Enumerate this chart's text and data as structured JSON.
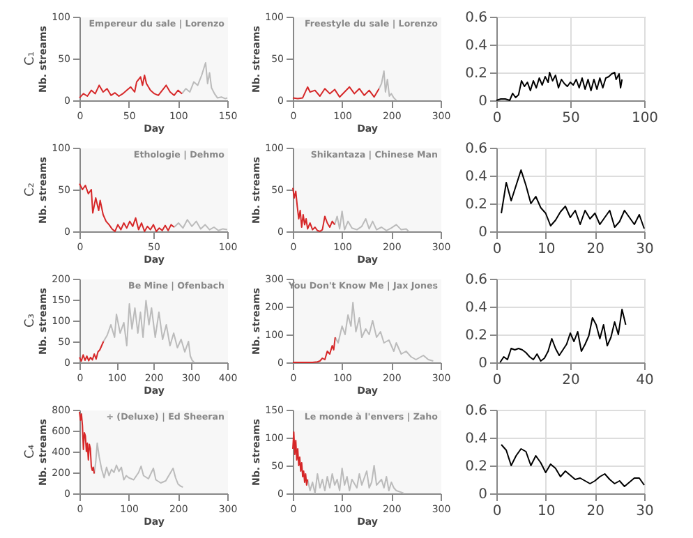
{
  "chart_data": [
    {
      "type": "line",
      "title": "Empereur du sale | Lorenzo",
      "xlabel": "Day",
      "ylabel": "Nb. streams",
      "annotations": [
        "C₁"
      ],
      "xlim": [
        0,
        150
      ],
      "xticks": [
        0,
        50,
        100,
        150
      ],
      "ylim": [
        0,
        100
      ],
      "yticks": [
        0,
        50,
        100
      ],
      "grid": false,
      "series": [
        {
          "color": "#bbbbbb",
          "x": [
            104,
            108,
            112,
            116,
            120,
            124,
            128,
            130,
            132,
            134,
            137,
            140,
            144,
            148,
            150
          ],
          "values": [
            8,
            14,
            10,
            22,
            18,
            30,
            45,
            20,
            33,
            15,
            8,
            3,
            4,
            2,
            3
          ]
        },
        {
          "color": "#d62728",
          "x": [
            0,
            4,
            8,
            12,
            16,
            20,
            24,
            28,
            32,
            36,
            40,
            44,
            48,
            52,
            56,
            58,
            62,
            64,
            66,
            68,
            72,
            76,
            80,
            84,
            88,
            92,
            96,
            100,
            104
          ],
          "values": [
            3,
            8,
            5,
            12,
            8,
            18,
            10,
            14,
            6,
            9,
            5,
            8,
            12,
            16,
            10,
            22,
            28,
            18,
            30,
            20,
            12,
            8,
            6,
            12,
            18,
            10,
            6,
            12,
            8
          ]
        }
      ]
    },
    {
      "type": "line",
      "title": "Freestyle du sale | Lorenzo",
      "xlabel": "Day",
      "ylabel": "Nb. streams",
      "xlim": [
        0,
        300
      ],
      "xticks": [
        0,
        100,
        200,
        300
      ],
      "ylim": [
        0,
        100
      ],
      "yticks": [
        0,
        50,
        100
      ],
      "grid": false,
      "series": [
        {
          "color": "#bbbbbb",
          "x": [
            175,
            180,
            185,
            188,
            192,
            196,
            200,
            205,
            210
          ],
          "values": [
            14,
            20,
            35,
            10,
            25,
            5,
            8,
            3,
            0
          ]
        },
        {
          "color": "#d62728",
          "x": [
            0,
            10,
            20,
            30,
            35,
            45,
            55,
            65,
            75,
            85,
            95,
            105,
            115,
            125,
            135,
            145,
            155,
            165,
            175
          ],
          "values": [
            3,
            2,
            3,
            16,
            10,
            12,
            5,
            14,
            8,
            13,
            4,
            10,
            16,
            8,
            14,
            6,
            12,
            4,
            14
          ]
        }
      ]
    },
    {
      "type": "line",
      "xlim": [
        0,
        100
      ],
      "xticks": [
        0,
        50,
        100
      ],
      "ylim": [
        0,
        0.6
      ],
      "yticks": [
        0,
        0.2,
        0.4,
        0.6
      ],
      "grid": true,
      "series": [
        {
          "color": "#000000",
          "x": [
            0,
            3,
            6,
            9,
            11,
            13,
            15,
            17,
            19,
            21,
            23,
            25,
            27,
            29,
            31,
            33,
            35,
            36,
            38,
            40,
            42,
            44,
            46,
            48,
            50,
            52,
            54,
            56,
            58,
            60,
            62,
            64,
            66,
            68,
            70,
            72,
            74,
            76,
            78,
            80,
            81,
            83,
            84,
            85
          ],
          "values": [
            0,
            0.01,
            0.01,
            0,
            0.05,
            0.02,
            0.04,
            0.14,
            0.1,
            0.13,
            0.07,
            0.14,
            0.09,
            0.16,
            0.11,
            0.17,
            0.13,
            0.2,
            0.14,
            0.18,
            0.09,
            0.15,
            0.12,
            0.1,
            0.13,
            0.11,
            0.15,
            0.09,
            0.16,
            0.08,
            0.15,
            0.07,
            0.15,
            0.08,
            0.16,
            0.09,
            0.16,
            0.17,
            0.19,
            0.2,
            0.15,
            0.19,
            0.09,
            0.15
          ]
        }
      ]
    },
    {
      "type": "line",
      "title": "Ethologie | Dehmo",
      "xlabel": "Day",
      "ylabel": "Nb. streams",
      "annotations": [
        "C₂"
      ],
      "xlim": [
        0,
        100
      ],
      "xticks": [
        0,
        50,
        100
      ],
      "ylim": [
        0,
        100
      ],
      "yticks": [
        0,
        50,
        100
      ],
      "grid": false,
      "series": [
        {
          "color": "#bbbbbb",
          "x": [
            64,
            67,
            70,
            73,
            76,
            79,
            82,
            85,
            88,
            91,
            94,
            97,
            100
          ],
          "values": [
            5,
            10,
            4,
            14,
            6,
            12,
            3,
            8,
            2,
            5,
            1,
            3,
            2
          ]
        },
        {
          "color": "#d62728",
          "x": [
            0,
            2,
            4,
            6,
            8,
            9,
            11,
            13,
            14,
            16,
            18,
            20,
            22,
            24,
            26,
            28,
            30,
            32,
            34,
            36,
            38,
            40,
            42,
            44,
            46,
            48,
            50,
            52,
            54,
            56,
            58,
            60,
            62,
            64
          ],
          "values": [
            57,
            50,
            55,
            45,
            50,
            22,
            40,
            25,
            37,
            20,
            12,
            8,
            3,
            0,
            8,
            2,
            10,
            4,
            12,
            6,
            16,
            2,
            10,
            0,
            6,
            2,
            8,
            0,
            4,
            1,
            7,
            1,
            8,
            5
          ]
        }
      ]
    },
    {
      "type": "line",
      "title": "Shikantaza | Chinese Man",
      "xlabel": "Day",
      "ylabel": "Nb. streams",
      "xlim": [
        0,
        300
      ],
      "xticks": [
        0,
        100,
        200,
        300
      ],
      "ylim": [
        0,
        100
      ],
      "yticks": [
        0,
        50,
        100
      ],
      "grid": false,
      "series": [
        {
          "color": "#bbbbbb",
          "x": [
            85,
            90,
            95,
            100,
            105,
            112,
            120,
            130,
            140,
            148,
            155,
            162,
            170,
            180,
            190,
            200,
            210,
            220,
            230,
            235
          ],
          "values": [
            8,
            18,
            3,
            24,
            2,
            12,
            4,
            2,
            6,
            15,
            3,
            12,
            2,
            5,
            1,
            4,
            8,
            2,
            3,
            0
          ]
        },
        {
          "color": "#d62728",
          "x": [
            0,
            3,
            6,
            9,
            12,
            15,
            18,
            21,
            24,
            27,
            30,
            35,
            40,
            45,
            50,
            55,
            60,
            65,
            70,
            75,
            80,
            85
          ],
          "values": [
            52,
            40,
            48,
            30,
            15,
            25,
            5,
            20,
            8,
            15,
            3,
            10,
            2,
            5,
            1,
            0,
            2,
            18,
            10,
            5,
            12,
            8
          ]
        }
      ]
    },
    {
      "type": "line",
      "xlim": [
        0,
        30
      ],
      "xticks": [
        0,
        10,
        20,
        30
      ],
      "ylim": [
        0,
        0.6
      ],
      "yticks": [
        0,
        0.2,
        0.4,
        0.6
      ],
      "grid": true,
      "series": [
        {
          "color": "#000000",
          "x": [
            1,
            2,
            3,
            4,
            5,
            6,
            7,
            8,
            9,
            10,
            11,
            12,
            13,
            14,
            15,
            16,
            17,
            18,
            19,
            20,
            21,
            22,
            23,
            24,
            25,
            26,
            27,
            28,
            29,
            30
          ],
          "values": [
            0.13,
            0.35,
            0.22,
            0.33,
            0.44,
            0.33,
            0.2,
            0.25,
            0.17,
            0.13,
            0.04,
            0.08,
            0.14,
            0.18,
            0.1,
            0.15,
            0.05,
            0.15,
            0.09,
            0.13,
            0.05,
            0.1,
            0.15,
            0.03,
            0.07,
            0.15,
            0.1,
            0.05,
            0.12,
            0.02
          ]
        }
      ]
    },
    {
      "type": "line",
      "title": "Be Mine | Ofenbach",
      "xlabel": "Day",
      "ylabel": "Nb. streams",
      "annotations": [
        "C₃"
      ],
      "xlim": [
        0,
        400
      ],
      "xticks": [
        0,
        100,
        200,
        300,
        400
      ],
      "ylim": [
        0,
        200
      ],
      "yticks": [
        0,
        50,
        100,
        150,
        200
      ],
      "grid": false,
      "series": [
        {
          "color": "#bbbbbb",
          "x": [
            65,
            75,
            85,
            95,
            100,
            110,
            120,
            128,
            135,
            142,
            150,
            158,
            165,
            172,
            180,
            188,
            195,
            205,
            215,
            225,
            235,
            245,
            255,
            265,
            275,
            285,
            295,
            300,
            305,
            310
          ],
          "values": [
            50,
            65,
            90,
            60,
            115,
            70,
            95,
            40,
            140,
            80,
            130,
            70,
            120,
            60,
            148,
            90,
            130,
            60,
            120,
            55,
            90,
            40,
            70,
            35,
            55,
            25,
            50,
            15,
            5,
            0
          ]
        },
        {
          "color": "#d62728",
          "x": [
            0,
            5,
            10,
            15,
            20,
            25,
            30,
            35,
            40,
            45,
            50,
            55,
            60,
            65
          ],
          "values": [
            12,
            3,
            18,
            5,
            15,
            4,
            12,
            6,
            20,
            8,
            25,
            30,
            40,
            50
          ]
        }
      ]
    },
    {
      "type": "line",
      "title": "You Don't Know Me | Jax Jones",
      "xlabel": "Day",
      "ylabel": "Nb. streams",
      "xlim": [
        0,
        300
      ],
      "xticks": [
        0,
        100,
        200,
        300
      ],
      "ylim": [
        0,
        300
      ],
      "yticks": [
        0,
        100,
        200,
        300
      ],
      "grid": false,
      "series": [
        {
          "color": "#bbbbbb",
          "x": [
            86,
            92,
            100,
            106,
            112,
            118,
            122,
            128,
            135,
            140,
            148,
            155,
            162,
            170,
            178,
            185,
            195,
            205,
            210,
            220,
            230,
            240,
            250,
            265,
            275,
            285
          ],
          "values": [
            90,
            70,
            130,
            100,
            170,
            130,
            215,
            110,
            160,
            90,
            120,
            100,
            150,
            90,
            110,
            70,
            80,
            40,
            70,
            30,
            40,
            20,
            10,
            25,
            10,
            5
          ]
        },
        {
          "color": "#d62728",
          "x": [
            0,
            20,
            40,
            50,
            55,
            60,
            65,
            70,
            75,
            80,
            83,
            86
          ],
          "values": [
            0,
            0,
            0,
            2,
            5,
            15,
            10,
            40,
            30,
            60,
            45,
            90
          ]
        }
      ]
    },
    {
      "type": "line",
      "xlim": [
        0,
        40
      ],
      "xticks": [
        0,
        20,
        40
      ],
      "ylim": [
        0,
        0.6
      ],
      "yticks": [
        0,
        0.2,
        0.4,
        0.6
      ],
      "grid": true,
      "series": [
        {
          "color": "#000000",
          "x": [
            1,
            2,
            3,
            4,
            5,
            6,
            7,
            8,
            9,
            10,
            11,
            12,
            13,
            14,
            15,
            16,
            17,
            18,
            19,
            20,
            21,
            22,
            23,
            24,
            25,
            26,
            27,
            28,
            29,
            30,
            31,
            32,
            33,
            34,
            35
          ],
          "values": [
            0,
            0.04,
            0.02,
            0.1,
            0.09,
            0.1,
            0.09,
            0.07,
            0.04,
            0.02,
            0.06,
            0.01,
            0.03,
            0.08,
            0.17,
            0.1,
            0.05,
            0.09,
            0.13,
            0.21,
            0.15,
            0.22,
            0.08,
            0.13,
            0.19,
            0.32,
            0.27,
            0.17,
            0.27,
            0.12,
            0.18,
            0.29,
            0.2,
            0.38,
            0.27
          ]
        }
      ]
    },
    {
      "type": "line",
      "title": "÷ (Deluxe) | Ed Sheeran",
      "xlabel": "Day",
      "ylabel": "Nb. streams",
      "annotations": [
        "C₄"
      ],
      "xlim": [
        0,
        300
      ],
      "xticks": [
        0,
        100,
        200,
        300
      ],
      "ylim": [
        0,
        800
      ],
      "yticks": [
        0,
        200,
        400,
        600,
        800
      ],
      "grid": false,
      "series": [
        {
          "color": "#bbbbbb",
          "x": [
            30,
            33,
            36,
            40,
            45,
            50,
            55,
            60,
            65,
            70,
            75,
            80,
            85,
            90,
            95,
            100,
            110,
            120,
            125,
            130,
            140,
            150,
            155,
            165,
            175,
            185,
            190,
            195,
            200,
            205,
            210
          ],
          "values": [
            190,
            300,
            480,
            350,
            230,
            150,
            250,
            170,
            230,
            200,
            270,
            210,
            250,
            130,
            170,
            150,
            130,
            200,
            260,
            170,
            140,
            240,
            130,
            100,
            120,
            200,
            240,
            150,
            90,
            70,
            60
          ]
        },
        {
          "color": "#d62728",
          "x": [
            0,
            2,
            4,
            6,
            8,
            10,
            12,
            14,
            16,
            18,
            20,
            22,
            24,
            26,
            28,
            30
          ],
          "values": [
            780,
            700,
            760,
            650,
            420,
            580,
            550,
            400,
            480,
            320,
            470,
            430,
            260,
            220,
            250,
            190
          ]
        }
      ]
    },
    {
      "type": "line",
      "title": "Le monde à l'envers | Zaho",
      "xlabel": "Day",
      "ylabel": "Nb. streams",
      "xlim": [
        0,
        300
      ],
      "xticks": [
        0,
        100,
        200,
        300
      ],
      "ylim": [
        0,
        150
      ],
      "yticks": [
        0,
        50,
        100,
        150
      ],
      "grid": false,
      "series": [
        {
          "color": "#bbbbbb",
          "x": [
            30,
            35,
            40,
            45,
            50,
            55,
            60,
            65,
            70,
            75,
            80,
            85,
            90,
            95,
            100,
            105,
            110,
            115,
            120,
            130,
            135,
            140,
            150,
            155,
            160,
            165,
            170,
            180,
            185,
            190,
            195,
            200,
            205,
            210,
            220,
            225
          ],
          "values": [
            25,
            5,
            20,
            0,
            35,
            10,
            25,
            5,
            30,
            10,
            35,
            15,
            25,
            5,
            45,
            15,
            30,
            5,
            25,
            10,
            35,
            15,
            40,
            10,
            20,
            50,
            15,
            25,
            10,
            30,
            5,
            20,
            10,
            5,
            2,
            0
          ]
        },
        {
          "color": "#d62728",
          "x": [
            0,
            2,
            4,
            6,
            8,
            10,
            12,
            14,
            16,
            18,
            20,
            22,
            24,
            26,
            28,
            30
          ],
          "values": [
            80,
            110,
            70,
            95,
            60,
            80,
            50,
            65,
            40,
            55,
            30,
            40,
            20,
            35,
            15,
            25
          ]
        }
      ]
    },
    {
      "type": "line",
      "xlim": [
        0,
        30
      ],
      "xticks": [
        0,
        10,
        20,
        30
      ],
      "ylim": [
        0,
        0.6
      ],
      "yticks": [
        0,
        0.2,
        0.4,
        0.6
      ],
      "grid": true,
      "series": [
        {
          "color": "#000000",
          "x": [
            1,
            2,
            3,
            4,
            5,
            6,
            7,
            8,
            9,
            10,
            11,
            12,
            13,
            14,
            15,
            16,
            17,
            18,
            19,
            20,
            21,
            22,
            23,
            24,
            25,
            26,
            27,
            28,
            29,
            30
          ],
          "values": [
            0.35,
            0.31,
            0.2,
            0.27,
            0.32,
            0.3,
            0.2,
            0.27,
            0.22,
            0.15,
            0.21,
            0.18,
            0.12,
            0.16,
            0.13,
            0.1,
            0.11,
            0.09,
            0.07,
            0.09,
            0.12,
            0.14,
            0.1,
            0.07,
            0.09,
            0.05,
            0.08,
            0.11,
            0.11,
            0.06
          ]
        }
      ]
    }
  ]
}
